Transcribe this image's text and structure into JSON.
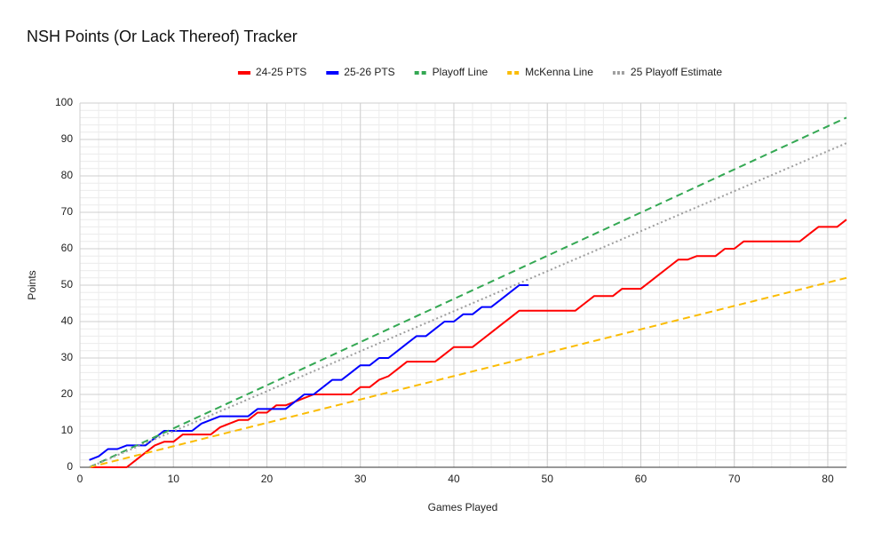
{
  "chart_data": {
    "type": "line",
    "title": "NSH Points (Or Lack Thereof) Tracker",
    "x_label": "Games Played",
    "y_label": "Points",
    "xlim": [
      0,
      82
    ],
    "xticks": [
      0,
      10,
      20,
      30,
      40,
      50,
      60,
      70,
      80
    ],
    "ylim": [
      0,
      100
    ],
    "yticks": [
      0,
      10,
      20,
      30,
      40,
      50,
      60,
      70,
      80,
      90,
      100
    ],
    "grid": true,
    "minor_grid": true,
    "legend": "top",
    "series": [
      {
        "name": "24-25 PTS",
        "color": "#ff0000",
        "style": "solid",
        "x": [
          1,
          2,
          3,
          4,
          5,
          6,
          7,
          8,
          9,
          10,
          11,
          12,
          13,
          14,
          15,
          16,
          17,
          18,
          19,
          20,
          21,
          22,
          23,
          24,
          25,
          26,
          27,
          28,
          29,
          30,
          31,
          32,
          33,
          34,
          35,
          36,
          37,
          38,
          39,
          40,
          41,
          42,
          43,
          44,
          45,
          46,
          47,
          48,
          49,
          50,
          51,
          52,
          53,
          54,
          55,
          56,
          57,
          58,
          59,
          60,
          61,
          62,
          63,
          64,
          65,
          66,
          67,
          68,
          69,
          70,
          71,
          72,
          73,
          74,
          75,
          76,
          77,
          78,
          79,
          80,
          81,
          82
        ],
        "values": [
          0,
          0,
          0,
          0,
          0,
          2,
          4,
          6,
          7,
          7,
          9,
          9,
          9,
          9,
          11,
          12,
          13,
          13,
          15,
          15,
          17,
          17,
          18,
          19,
          20,
          20,
          20,
          20,
          20,
          22,
          22,
          24,
          25,
          27,
          29,
          29,
          29,
          29,
          31,
          33,
          33,
          33,
          35,
          37,
          39,
          41,
          43,
          43,
          43,
          43,
          43,
          43,
          43,
          45,
          47,
          47,
          47,
          49,
          49,
          49,
          51,
          53,
          55,
          57,
          57,
          58,
          58,
          58,
          60,
          60,
          62,
          62,
          62,
          62,
          62,
          62,
          62,
          64,
          66,
          66,
          66,
          68
        ]
      },
      {
        "name": "25-26 PTS",
        "color": "#0000ff",
        "style": "solid",
        "x": [
          1,
          2,
          3,
          4,
          5,
          6,
          7,
          8,
          9,
          10,
          11,
          12,
          13,
          14,
          15,
          16,
          17,
          18,
          19,
          20,
          21,
          22,
          23,
          24,
          25,
          26,
          27,
          28,
          29,
          30,
          31,
          32,
          33,
          34,
          35,
          36,
          37,
          38,
          39,
          40,
          41,
          42,
          43,
          44,
          45,
          46,
          47,
          48
        ],
        "values": [
          2,
          3,
          5,
          5,
          6,
          6,
          6,
          8,
          10,
          10,
          10,
          10,
          12,
          13,
          14,
          14,
          14,
          14,
          16,
          16,
          16,
          16,
          18,
          20,
          20,
          22,
          24,
          24,
          26,
          28,
          28,
          30,
          30,
          32,
          34,
          36,
          36,
          38,
          40,
          40,
          42,
          42,
          44,
          44,
          46,
          48,
          50,
          50
        ]
      },
      {
        "name": "Playoff Line",
        "color": "#34a853",
        "style": "dashed",
        "x": [
          1,
          82
        ],
        "values": [
          0,
          96
        ]
      },
      {
        "name": "McKenna Line",
        "color": "#fbbc04",
        "style": "dashed",
        "x": [
          1,
          82
        ],
        "values": [
          0,
          52
        ]
      },
      {
        "name": "25 Playoff Estimate",
        "color": "#9e9e9e",
        "style": "dotted",
        "x": [
          1,
          82
        ],
        "values": [
          0,
          89
        ]
      }
    ]
  }
}
